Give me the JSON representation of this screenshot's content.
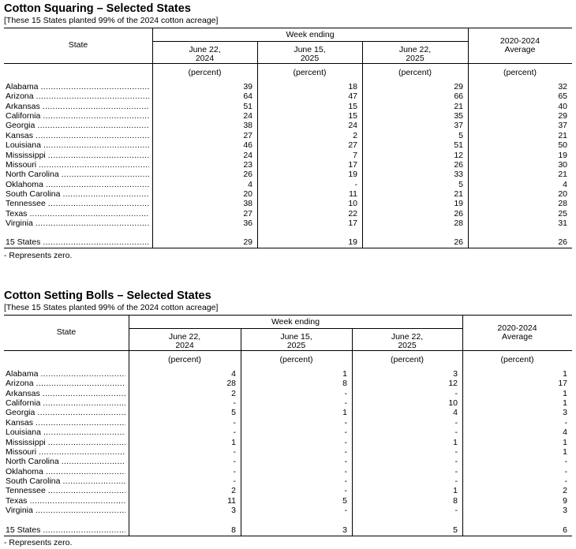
{
  "footnote": "- Represents zero.",
  "tables": [
    {
      "title": "Cotton Squaring – Selected States",
      "subtitle": "[These 15 States planted 99% of the 2024 cotton acreage]",
      "header": {
        "state": "State",
        "week_ending": "Week ending",
        "columns": [
          [
            "June 22,",
            "2024"
          ],
          [
            "June 15,",
            "2025"
          ],
          [
            "June 22,",
            "2025"
          ],
          [
            "2020-2024",
            "Average"
          ]
        ],
        "unit": "(percent)"
      },
      "rows": [
        [
          "Alabama",
          "39",
          "18",
          "29",
          "32"
        ],
        [
          "Arizona",
          "64",
          "47",
          "66",
          "65"
        ],
        [
          "Arkansas",
          "51",
          "15",
          "21",
          "40"
        ],
        [
          "California",
          "24",
          "15",
          "35",
          "29"
        ],
        [
          "Georgia",
          "38",
          "24",
          "37",
          "37"
        ],
        [
          "Kansas",
          "27",
          "2",
          "5",
          "21"
        ],
        [
          "Louisiana",
          "46",
          "27",
          "51",
          "50"
        ],
        [
          "Mississippi",
          "24",
          "7",
          "12",
          "19"
        ],
        [
          "Missouri",
          "23",
          "17",
          "26",
          "30"
        ],
        [
          "North Carolina",
          "26",
          "19",
          "33",
          "21"
        ],
        [
          "Oklahoma",
          "4",
          "-",
          "5",
          "4"
        ],
        [
          "South Carolina",
          "20",
          "11",
          "21",
          "20"
        ],
        [
          "Tennessee",
          "38",
          "10",
          "19",
          "28"
        ],
        [
          "Texas",
          "27",
          "22",
          "26",
          "25"
        ],
        [
          "Virginia",
          "36",
          "17",
          "28",
          "31"
        ]
      ],
      "total": [
        "15 States",
        "29",
        "19",
        "26",
        "26"
      ]
    },
    {
      "title": "Cotton Setting Bolls – Selected States",
      "subtitle": "[These 15 States planted 99% of the 2024 cotton acreage]",
      "header": {
        "state": "State",
        "week_ending": "Week ending",
        "columns": [
          [
            "June 22,",
            "2024"
          ],
          [
            "June 15,",
            "2025"
          ],
          [
            "June 22,",
            "2025"
          ],
          [
            "2020-2024",
            "Average"
          ]
        ],
        "unit": "(percent)"
      },
      "rows": [
        [
          "Alabama",
          "4",
          "1",
          "3",
          "1"
        ],
        [
          "Arizona",
          "28",
          "8",
          "12",
          "17"
        ],
        [
          "Arkansas",
          "2",
          "-",
          "-",
          "1"
        ],
        [
          "California",
          "-",
          "-",
          "10",
          "1"
        ],
        [
          "Georgia",
          "5",
          "1",
          "4",
          "3"
        ],
        [
          "Kansas",
          "-",
          "-",
          "-",
          "-"
        ],
        [
          "Louisiana",
          "-",
          "-",
          "-",
          "4"
        ],
        [
          "Mississippi",
          "1",
          "-",
          "1",
          "1"
        ],
        [
          "Missouri",
          "-",
          "-",
          "-",
          "1"
        ],
        [
          "North Carolina",
          "-",
          "-",
          "-",
          "-"
        ],
        [
          "Oklahoma",
          "-",
          "-",
          "-",
          "-"
        ],
        [
          "South Carolina",
          "-",
          "-",
          "-",
          "-"
        ],
        [
          "Tennessee",
          "2",
          "-",
          "1",
          "2"
        ],
        [
          "Texas",
          "11",
          "5",
          "8",
          "9"
        ],
        [
          "Virginia",
          "3",
          "-",
          "-",
          "3"
        ]
      ],
      "total": [
        "15 States",
        "8",
        "3",
        "5",
        "6"
      ]
    }
  ]
}
